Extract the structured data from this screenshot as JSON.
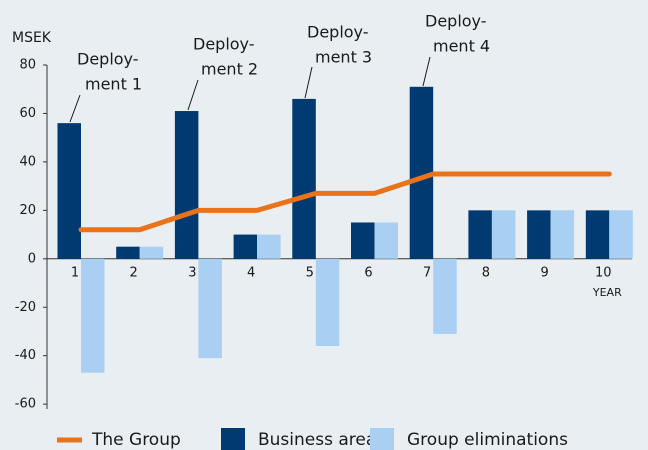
{
  "chart_data": {
    "type": "bar",
    "y_label": "MSEK",
    "x_label": "YEAR",
    "categories": [
      "1",
      "2",
      "3",
      "4",
      "5",
      "6",
      "7",
      "8",
      "9",
      "10"
    ],
    "series": [
      {
        "name": "The Group",
        "type": "line",
        "color": "#e8731a",
        "values": [
          12,
          12,
          20,
          20,
          27,
          27,
          35,
          35,
          35,
          35
        ]
      },
      {
        "name": "Business area",
        "type": "bar",
        "color": "#003a70",
        "values": [
          56,
          5,
          61,
          10,
          66,
          15,
          71,
          20,
          20,
          20
        ]
      },
      {
        "name": "Group eliminations",
        "type": "bar",
        "color": "#a9d0f2",
        "values": [
          -47,
          5,
          -41,
          10,
          -36,
          15,
          -31,
          20,
          20,
          20
        ]
      }
    ],
    "annotations": [
      {
        "lines": [
          "Deploy-",
          "ment 1"
        ],
        "category": 0
      },
      {
        "lines": [
          "Deploy-",
          "ment 2"
        ],
        "category": 2
      },
      {
        "lines": [
          "Deploy-",
          "ment 3"
        ],
        "category": 4
      },
      {
        "lines": [
          "Deploy-",
          "ment 4"
        ],
        "category": 6
      }
    ],
    "ylim": [
      -62,
      80
    ],
    "yticks": [
      -60,
      -40,
      -20,
      0,
      20,
      40,
      60,
      80
    ],
    "legend": "bottom"
  }
}
